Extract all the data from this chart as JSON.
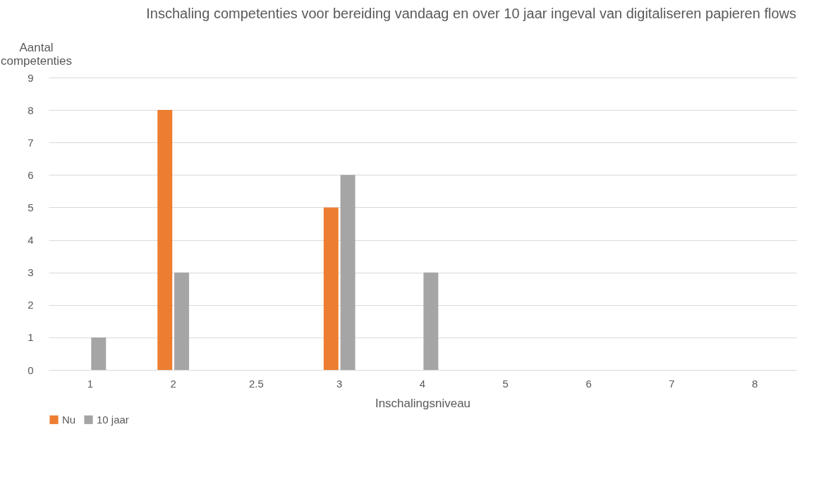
{
  "chart_data": {
    "type": "bar",
    "title": "Inschaling competenties voor bereiding vandaag en over 10 jaar ingeval van digitaliseren papieren flows",
    "xlabel": "Inschalingsniveau",
    "ylabel": "Aantal competenties",
    "categories": [
      "1",
      "2",
      "2.5",
      "3",
      "4",
      "5",
      "6",
      "7",
      "8"
    ],
    "series": [
      {
        "name": "Nu",
        "color": "#ed7d31",
        "values": [
          0,
          8,
          0,
          5,
          0,
          0,
          0,
          0,
          0
        ]
      },
      {
        "name": "10 jaar",
        "color": "#a5a5a5",
        "values": [
          1,
          3,
          0,
          6,
          3,
          0,
          0,
          0,
          0
        ]
      }
    ],
    "ylim": [
      0,
      9
    ],
    "yticks": [
      0,
      1,
      2,
      3,
      4,
      5,
      6,
      7,
      8,
      9
    ],
    "grid": "y",
    "legend": "bottom"
  }
}
